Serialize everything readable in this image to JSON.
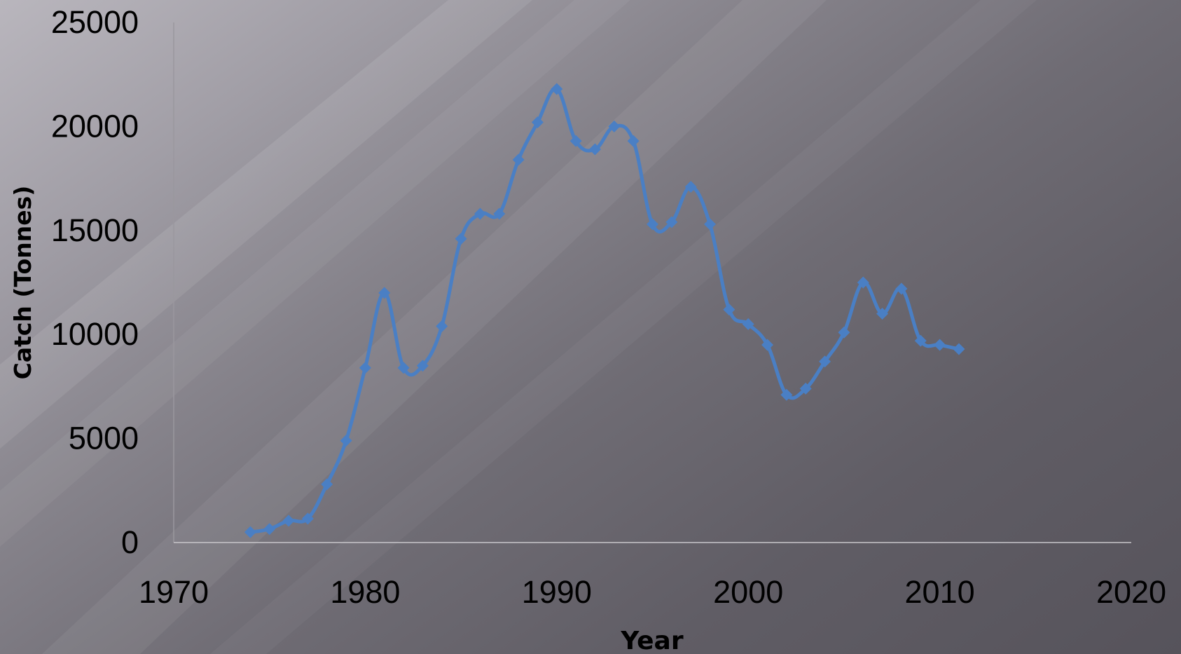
{
  "chart_data": {
    "type": "line",
    "xlabel": "Year",
    "ylabel": "Catch (Tonnes)",
    "xlim": [
      1970,
      2020
    ],
    "ylim": [
      0,
      25000
    ],
    "x_ticks": [
      1970,
      1980,
      1990,
      2000,
      2010,
      2020
    ],
    "y_ticks": [
      0,
      5000,
      10000,
      15000,
      20000,
      25000
    ],
    "grid": false,
    "legend": "none",
    "series": [
      {
        "color": "#4a7fc4",
        "marker": "diamond",
        "smooth": true,
        "points": [
          [
            1974,
            500
          ],
          [
            1975,
            650
          ],
          [
            1976,
            1050
          ],
          [
            1977,
            1150
          ],
          [
            1978,
            2800
          ],
          [
            1979,
            4900
          ],
          [
            1980,
            8400
          ],
          [
            1981,
            12000
          ],
          [
            1982,
            8400
          ],
          [
            1983,
            8500
          ],
          [
            1984,
            10400
          ],
          [
            1985,
            14600
          ],
          [
            1986,
            15800
          ],
          [
            1987,
            15800
          ],
          [
            1988,
            18400
          ],
          [
            1989,
            20200
          ],
          [
            1990,
            21800
          ],
          [
            1991,
            19300
          ],
          [
            1992,
            18900
          ],
          [
            1993,
            20000
          ],
          [
            1994,
            19300
          ],
          [
            1995,
            15300
          ],
          [
            1996,
            15400
          ],
          [
            1997,
            17100
          ],
          [
            1998,
            15300
          ],
          [
            1999,
            11200
          ],
          [
            2000,
            10500
          ],
          [
            2001,
            9500
          ],
          [
            2002,
            7100
          ],
          [
            2003,
            7400
          ],
          [
            2004,
            8700
          ],
          [
            2005,
            10100
          ],
          [
            2006,
            12500
          ],
          [
            2007,
            11000
          ],
          [
            2008,
            12200
          ],
          [
            2009,
            9700
          ],
          [
            2010,
            9500
          ],
          [
            2011,
            9300
          ]
        ]
      }
    ]
  }
}
